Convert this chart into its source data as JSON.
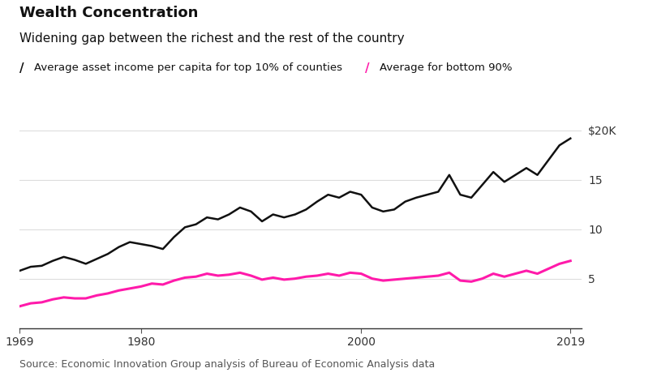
{
  "title": "Wealth Concentration",
  "subtitle": "Widening gap between the richest and the rest of the country",
  "source": "Source: Economic Innovation Group analysis of Bureau of Economic Analysis data",
  "legend_top": "Average asset income per capita for top 10% of counties",
  "legend_bot": "Average for bottom 90%",
  "top10_years": [
    1969,
    1970,
    1971,
    1972,
    1973,
    1974,
    1975,
    1976,
    1977,
    1978,
    1979,
    1980,
    1981,
    1982,
    1983,
    1984,
    1985,
    1986,
    1987,
    1988,
    1989,
    1990,
    1991,
    1992,
    1993,
    1994,
    1995,
    1996,
    1997,
    1998,
    1999,
    2000,
    2001,
    2002,
    2003,
    2004,
    2005,
    2006,
    2007,
    2008,
    2009,
    2010,
    2011,
    2012,
    2013,
    2014,
    2015,
    2016,
    2017,
    2018,
    2019
  ],
  "top10_values": [
    5.8,
    6.2,
    6.3,
    6.8,
    7.2,
    6.9,
    6.5,
    7.0,
    7.5,
    8.2,
    8.7,
    8.5,
    8.3,
    8.0,
    9.2,
    10.2,
    10.5,
    11.2,
    11.0,
    11.5,
    12.2,
    11.8,
    10.8,
    11.5,
    11.2,
    11.5,
    12.0,
    12.8,
    13.5,
    13.2,
    13.8,
    13.5,
    12.2,
    11.8,
    12.0,
    12.8,
    13.2,
    13.5,
    13.8,
    15.5,
    13.5,
    13.2,
    14.5,
    15.8,
    14.8,
    15.5,
    16.2,
    15.5,
    17.0,
    18.5,
    19.2
  ],
  "bot90_years": [
    1969,
    1970,
    1971,
    1972,
    1973,
    1974,
    1975,
    1976,
    1977,
    1978,
    1979,
    1980,
    1981,
    1982,
    1983,
    1984,
    1985,
    1986,
    1987,
    1988,
    1989,
    1990,
    1991,
    1992,
    1993,
    1994,
    1995,
    1996,
    1997,
    1998,
    1999,
    2000,
    2001,
    2002,
    2003,
    2004,
    2005,
    2006,
    2007,
    2008,
    2009,
    2010,
    2011,
    2012,
    2013,
    2014,
    2015,
    2016,
    2017,
    2018,
    2019
  ],
  "bot90_values": [
    2.2,
    2.5,
    2.6,
    2.9,
    3.1,
    3.0,
    3.0,
    3.3,
    3.5,
    3.8,
    4.0,
    4.2,
    4.5,
    4.4,
    4.8,
    5.1,
    5.2,
    5.5,
    5.3,
    5.4,
    5.6,
    5.3,
    4.9,
    5.1,
    4.9,
    5.0,
    5.2,
    5.3,
    5.5,
    5.3,
    5.6,
    5.5,
    5.0,
    4.8,
    4.9,
    5.0,
    5.1,
    5.2,
    5.3,
    5.6,
    4.8,
    4.7,
    5.0,
    5.5,
    5.2,
    5.5,
    5.8,
    5.5,
    6.0,
    6.5,
    6.8
  ],
  "ylim": [
    0,
    21
  ],
  "yticks": [
    5,
    10,
    15,
    20
  ],
  "ytick_labels": [
    "5",
    "10",
    "15",
    "$20K"
  ],
  "xlim": [
    1969,
    2020
  ],
  "xticks": [
    1969,
    1980,
    2000,
    2019
  ],
  "background_color": "#ffffff",
  "line_color_top": "#111111",
  "line_color_bot": "#ff1aaa",
  "grid_color": "#dddddd",
  "title_fontsize": 13,
  "subtitle_fontsize": 11,
  "legend_fontsize": 9.5,
  "tick_fontsize": 10,
  "source_fontsize": 9
}
